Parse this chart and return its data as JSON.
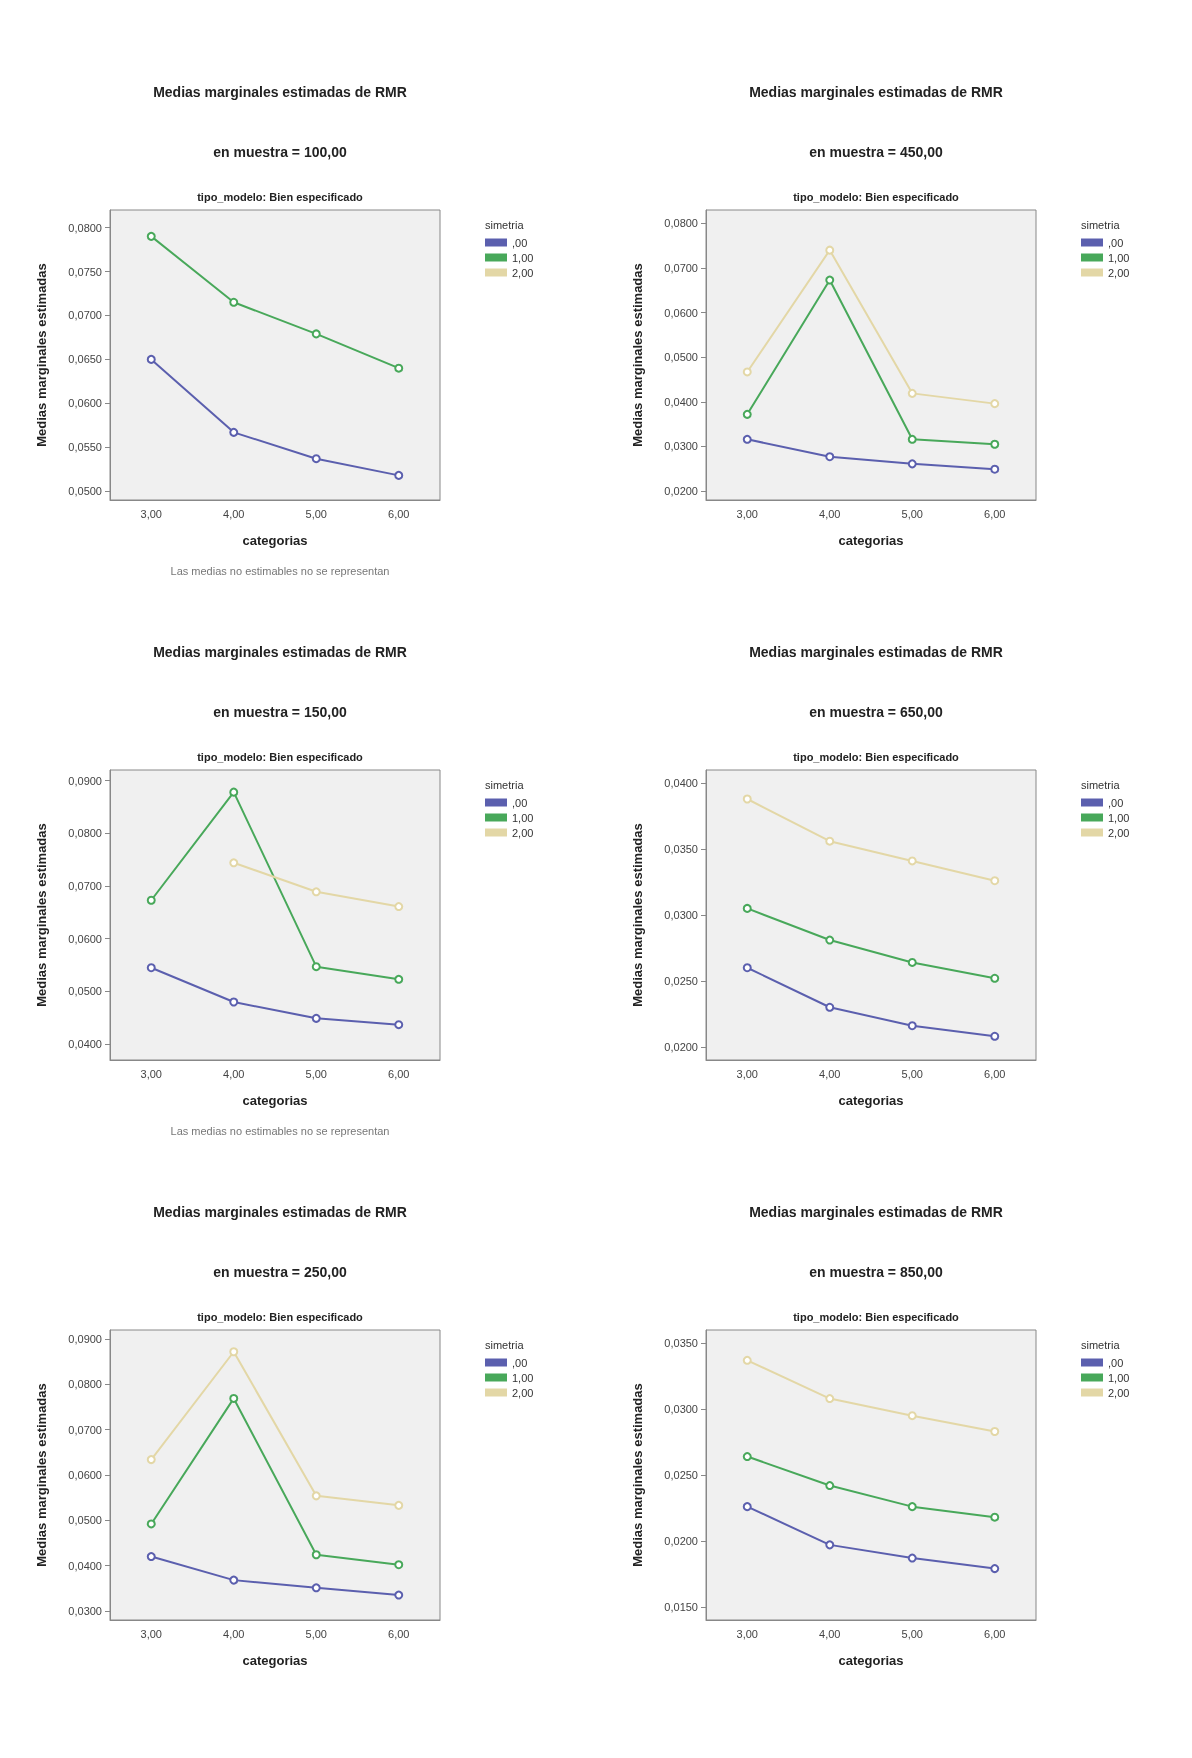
{
  "chart_data": [
    {
      "type": "line",
      "title": "Medias marginales estimadas de RMR",
      "subtitle": "en muestra = 100,00",
      "annotations": [
        "tipo_modelo: Bien especificado",
        "Las medias no estimables no se representan"
      ],
      "xlabel": "categorias",
      "ylabel": "Medias marginales estimadas",
      "legend_title": "simetria",
      "categories": [
        "3,00",
        "4,00",
        "5,00",
        "6,00"
      ],
      "series": [
        {
          "name": ",00",
          "color": "#5b5fae",
          "values": [
            0.065,
            0.0567,
            0.0537,
            0.0518
          ]
        },
        {
          "name": "1,00",
          "color": "#48a85a",
          "values": [
            0.079,
            0.0715,
            0.0679,
            0.064
          ]
        },
        {
          "name": "2,00",
          "color": "#e3d7a6",
          "values": [
            null,
            null,
            null,
            null
          ]
        }
      ],
      "ylim": [
        0.049,
        0.082
      ],
      "yticks": [
        {
          "value": 0.05,
          "label": "0,0500"
        },
        {
          "value": 0.055,
          "label": "0,0550"
        },
        {
          "value": 0.06,
          "label": "0,0600"
        },
        {
          "value": 0.065,
          "label": "0,0650"
        },
        {
          "value": 0.07,
          "label": "0,0700"
        },
        {
          "value": 0.075,
          "label": "0,0750"
        },
        {
          "value": 0.08,
          "label": "0,0800"
        }
      ],
      "grid": false,
      "legend": "right",
      "marker": "circle",
      "line_style": "solid"
    },
    {
      "type": "line",
      "title": "Medias marginales estimadas de RMR",
      "subtitle": "en muestra = 450,00",
      "annotations": [
        "tipo_modelo: Bien especificado"
      ],
      "xlabel": "categorias",
      "ylabel": "Medias marginales estimadas",
      "legend_title": "simetria",
      "categories": [
        "3,00",
        "4,00",
        "5,00",
        "6,00"
      ],
      "series": [
        {
          "name": ",00",
          "color": "#5b5fae",
          "values": [
            0.0316,
            0.0277,
            0.0261,
            0.0249
          ]
        },
        {
          "name": "1,00",
          "color": "#48a85a",
          "values": [
            0.0372,
            0.0673,
            0.0316,
            0.0305
          ]
        },
        {
          "name": "2,00",
          "color": "#e3d7a6",
          "values": [
            0.0467,
            0.074,
            0.0419,
            0.0396
          ]
        }
      ],
      "ylim": [
        0.018,
        0.083
      ],
      "yticks": [
        {
          "value": 0.02,
          "label": "0,0200"
        },
        {
          "value": 0.03,
          "label": "0,0300"
        },
        {
          "value": 0.04,
          "label": "0,0400"
        },
        {
          "value": 0.05,
          "label": "0,0500"
        },
        {
          "value": 0.06,
          "label": "0,0600"
        },
        {
          "value": 0.07,
          "label": "0,0700"
        },
        {
          "value": 0.08,
          "label": "0,0800"
        }
      ],
      "grid": false,
      "legend": "right",
      "marker": "circle",
      "line_style": "solid"
    },
    {
      "type": "line",
      "title": "Medias marginales estimadas de RMR",
      "subtitle": "en muestra = 150,00",
      "annotations": [
        "tipo_modelo: Bien especificado",
        "Las medias no estimables no se representan"
      ],
      "xlabel": "categorias",
      "ylabel": "Medias marginales estimadas",
      "legend_title": "simetria",
      "categories": [
        "3,00",
        "4,00",
        "5,00",
        "6,00"
      ],
      "series": [
        {
          "name": ",00",
          "color": "#5b5fae",
          "values": [
            0.0545,
            0.048,
            0.0449,
            0.0437
          ]
        },
        {
          "name": "1,00",
          "color": "#48a85a",
          "values": [
            0.0673,
            0.0878,
            0.0547,
            0.0523
          ]
        },
        {
          "name": "2,00",
          "color": "#e3d7a6",
          "values": [
            null,
            0.0744,
            0.0689,
            0.0661
          ]
        }
      ],
      "ylim": [
        0.037,
        0.092
      ],
      "yticks": [
        {
          "value": 0.04,
          "label": "0,0400"
        },
        {
          "value": 0.05,
          "label": "0,0500"
        },
        {
          "value": 0.06,
          "label": "0,0600"
        },
        {
          "value": 0.07,
          "label": "0,0700"
        },
        {
          "value": 0.08,
          "label": "0,0800"
        },
        {
          "value": 0.09,
          "label": "0,0900"
        }
      ],
      "grid": false,
      "legend": "right",
      "marker": "circle",
      "line_style": "solid"
    },
    {
      "type": "line",
      "title": "Medias marginales estimadas de RMR",
      "subtitle": "en muestra = 650,00",
      "annotations": [
        "tipo_modelo: Bien especificado"
      ],
      "xlabel": "categorias",
      "ylabel": "Medias marginales estimadas",
      "legend_title": "simetria",
      "categories": [
        "3,00",
        "4,00",
        "5,00",
        "6,00"
      ],
      "series": [
        {
          "name": ",00",
          "color": "#5b5fae",
          "values": [
            0.026,
            0.023,
            0.0216,
            0.0208
          ]
        },
        {
          "name": "1,00",
          "color": "#48a85a",
          "values": [
            0.0305,
            0.0281,
            0.0264,
            0.0252
          ]
        },
        {
          "name": "2,00",
          "color": "#e3d7a6",
          "values": [
            0.0388,
            0.0356,
            0.0341,
            0.0326
          ]
        }
      ],
      "ylim": [
        0.019,
        0.041
      ],
      "yticks": [
        {
          "value": 0.02,
          "label": "0,0200"
        },
        {
          "value": 0.025,
          "label": "0,0250"
        },
        {
          "value": 0.03,
          "label": "0,0300"
        },
        {
          "value": 0.035,
          "label": "0,0350"
        },
        {
          "value": 0.04,
          "label": "0,0400"
        }
      ],
      "grid": false,
      "legend": "right",
      "marker": "circle",
      "line_style": "solid"
    },
    {
      "type": "line",
      "title": "Medias marginales estimadas de RMR",
      "subtitle": "en muestra = 250,00",
      "annotations": [
        "tipo_modelo: Bien especificado"
      ],
      "xlabel": "categorias",
      "ylabel": "Medias marginales estimadas",
      "legend_title": "simetria",
      "categories": [
        "3,00",
        "4,00",
        "5,00",
        "6,00"
      ],
      "series": [
        {
          "name": ",00",
          "color": "#5b5fae",
          "values": [
            0.042,
            0.0368,
            0.0351,
            0.0335
          ]
        },
        {
          "name": "1,00",
          "color": "#48a85a",
          "values": [
            0.0492,
            0.0769,
            0.0424,
            0.0402
          ]
        },
        {
          "name": "2,00",
          "color": "#e3d7a6",
          "values": [
            0.0634,
            0.0872,
            0.0554,
            0.0533
          ]
        }
      ],
      "ylim": [
        0.028,
        0.092
      ],
      "yticks": [
        {
          "value": 0.03,
          "label": "0,0300"
        },
        {
          "value": 0.04,
          "label": "0,0400"
        },
        {
          "value": 0.05,
          "label": "0,0500"
        },
        {
          "value": 0.06,
          "label": "0,0600"
        },
        {
          "value": 0.07,
          "label": "0,0700"
        },
        {
          "value": 0.08,
          "label": "0,0800"
        },
        {
          "value": 0.09,
          "label": "0,0900"
        }
      ],
      "grid": false,
      "legend": "right",
      "marker": "circle",
      "line_style": "solid"
    },
    {
      "type": "line",
      "title": "Medias marginales estimadas de RMR",
      "subtitle": "en muestra = 850,00",
      "annotations": [
        "tipo_modelo: Bien especificado"
      ],
      "xlabel": "categorias",
      "ylabel": "Medias marginales estimadas",
      "legend_title": "simetria",
      "categories": [
        "3,00",
        "4,00",
        "5,00",
        "6,00"
      ],
      "series": [
        {
          "name": ",00",
          "color": "#5b5fae",
          "values": [
            0.0226,
            0.0197,
            0.0187,
            0.0179
          ]
        },
        {
          "name": "1,00",
          "color": "#48a85a",
          "values": [
            0.0264,
            0.0242,
            0.0226,
            0.0218
          ]
        },
        {
          "name": "2,00",
          "color": "#e3d7a6",
          "values": [
            0.0337,
            0.0308,
            0.0295,
            0.0283
          ]
        }
      ],
      "ylim": [
        0.014,
        0.036
      ],
      "yticks": [
        {
          "value": 0.015,
          "label": "0,0150"
        },
        {
          "value": 0.02,
          "label": "0,0200"
        },
        {
          "value": 0.025,
          "label": "0,0250"
        },
        {
          "value": 0.03,
          "label": "0,0300"
        },
        {
          "value": 0.035,
          "label": "0,0350"
        }
      ],
      "grid": false,
      "legend": "right",
      "marker": "circle",
      "line_style": "solid"
    }
  ]
}
